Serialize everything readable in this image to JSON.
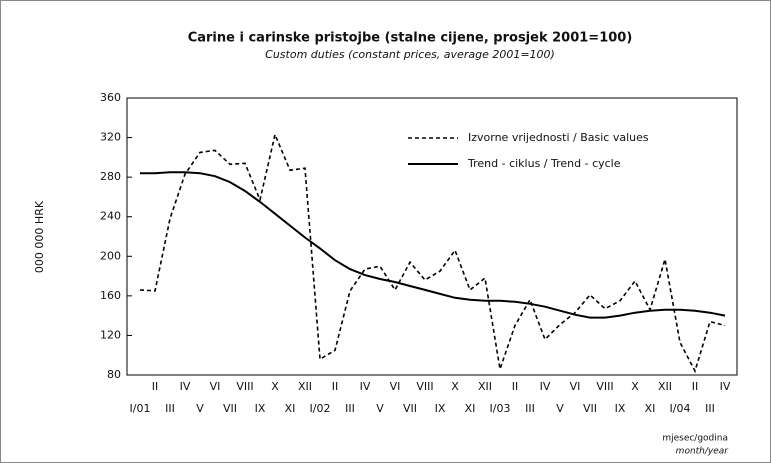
{
  "chart_data": {
    "type": "line",
    "title": "Carine i carinske pristojbe (stalne cijene, prosjek 2001=100)",
    "subtitle": "Custom duties (constant prices, average 2001=100)",
    "y_label": "000 000 HRK",
    "x_label": "mjesec/godina",
    "x_label_en": "month/year",
    "categories": [
      "I/01",
      "II",
      "III",
      "IV",
      "V",
      "VI",
      "VII",
      "VIII",
      "IX",
      "X",
      "XI",
      "XII",
      "I/02",
      "II",
      "III",
      "IV",
      "V",
      "VI",
      "VII",
      "VIII",
      "IX",
      "X",
      "XI",
      "XII",
      "I/03",
      "II",
      "III",
      "IV",
      "V",
      "VI",
      "VII",
      "VIII",
      "IX",
      "X",
      "XI",
      "XII",
      "I/04",
      "II",
      "III",
      "IV"
    ],
    "series": [
      {
        "name": "Izvorne vrijednosti / Basic values",
        "color": "#000000",
        "dashed": true,
        "values": [
          166,
          165,
          238,
          283,
          305,
          307,
          293,
          294,
          257,
          323,
          287,
          289,
          96,
          105,
          165,
          187,
          190,
          166,
          194,
          176,
          185,
          206,
          166,
          178,
          86,
          130,
          156,
          116,
          131,
          143,
          161,
          147,
          155,
          175,
          146,
          197,
          113,
          84,
          134,
          130
        ]
      },
      {
        "name": "Trend - ciklus / Trend - cycle",
        "color": "#000000",
        "dashed": false,
        "values": [
          284,
          284,
          285,
          285,
          284,
          281,
          275,
          266,
          255,
          243,
          231,
          219,
          208,
          196,
          187,
          181,
          177,
          174,
          170,
          166,
          162,
          158,
          156,
          155,
          155,
          154,
          152,
          149,
          145,
          141,
          138,
          138,
          140,
          143,
          145,
          146,
          146,
          145,
          143,
          140
        ]
      }
    ],
    "ylim": [
      80,
      360
    ],
    "yticks": [
      80,
      120,
      160,
      200,
      240,
      280,
      320,
      360
    ]
  }
}
